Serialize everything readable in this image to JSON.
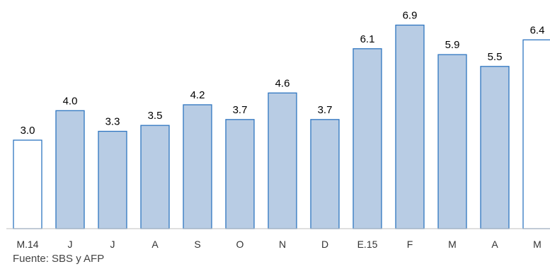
{
  "chart_data": {
    "type": "bar",
    "categories": [
      "M.14",
      "J",
      "J",
      "A",
      "S",
      "O",
      "N",
      "D",
      "E.15",
      "F",
      "M",
      "A",
      "M"
    ],
    "values": [
      3.0,
      4.0,
      3.3,
      3.5,
      4.2,
      3.7,
      4.6,
      3.7,
      6.1,
      6.9,
      5.9,
      5.5,
      6.4
    ],
    "value_labels": [
      "3.0",
      "4.0",
      "3.3",
      "3.5",
      "4.2",
      "3.7",
      "4.6",
      "3.7",
      "6.1",
      "6.9",
      "5.9",
      "5.5",
      "6.4"
    ],
    "highlighted": [
      true,
      false,
      false,
      false,
      false,
      false,
      false,
      false,
      false,
      false,
      false,
      false,
      true
    ],
    "ylim": [
      0,
      7.5
    ],
    "grid": false,
    "colors": {
      "fill": "#b8cce4",
      "highlight_fill": "#ffffff",
      "stroke": "#2e75c0",
      "axis": "#bfbfbf",
      "label": "#000000",
      "tick": "#333333"
    }
  },
  "source": "Fuente: SBS y AFP"
}
